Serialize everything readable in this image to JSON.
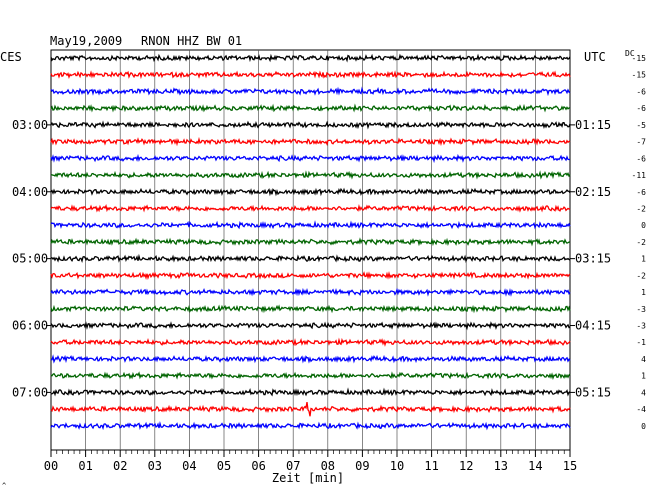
{
  "header": {
    "date": "May19,2009",
    "station": "RNON HHZ BW 01",
    "left_zone": "CES",
    "right_zone": "UTC",
    "dc_label": "DC"
  },
  "x_axis": {
    "label": "Zeit [min]",
    "ticks": [
      "00",
      "01",
      "02",
      "03",
      "04",
      "05",
      "06",
      "07",
      "08",
      "09",
      "10",
      "11",
      "12",
      "13",
      "14",
      "15"
    ]
  },
  "left_hour_labels": [
    {
      "row": 4,
      "text": "03:00"
    },
    {
      "row": 8,
      "text": "04:00"
    },
    {
      "row": 12,
      "text": "05:00"
    },
    {
      "row": 16,
      "text": "06:00"
    },
    {
      "row": 20,
      "text": "07:00"
    }
  ],
  "right_hour_labels": [
    {
      "row": 4,
      "text": "01:15"
    },
    {
      "row": 8,
      "text": "02:15"
    },
    {
      "row": 12,
      "text": "03:15"
    },
    {
      "row": 16,
      "text": "04:15"
    },
    {
      "row": 20,
      "text": "05:15"
    }
  ],
  "dc_offsets": [
    "-15",
    "-15",
    "-6",
    "-6",
    "-5",
    "-7",
    "-6",
    "-11",
    "-6",
    "-2",
    "0",
    "-2",
    "1",
    "-2",
    "1",
    "-3",
    "-3",
    "-1",
    "4",
    "1",
    "4",
    "-4",
    "0"
  ],
  "trace_colors": [
    "#000000",
    "#ff0000",
    "#0000ff",
    "#006400"
  ],
  "event": {
    "row": 21,
    "minute": 7.45,
    "amplitude": "large"
  },
  "footer_mark": "^"
}
